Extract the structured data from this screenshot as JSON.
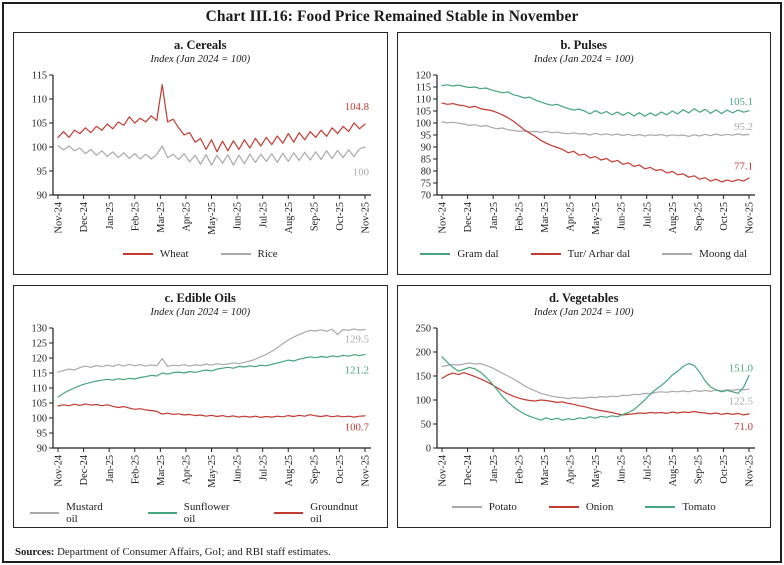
{
  "page": {
    "title": "Chart III.16: Food Price Remained Stable in November",
    "sources_label": "Sources:",
    "sources_text": " Department of Consumer Affairs, GoI; and RBI staff estimates."
  },
  "colors": {
    "red": "#c23b32",
    "green": "#45a57c",
    "gray": "#a9a9a9",
    "axis": "#1f1f1f"
  },
  "x_labels": [
    "Nov-24",
    "Dec-24",
    "Jan-25",
    "Feb-25",
    "Mar-25",
    "Apr-25",
    "May-25",
    "Jun-25",
    "Jul-25",
    "Aug-25",
    "Sep-25",
    "Oct-25",
    "Nov-25"
  ],
  "chart_data": [
    {
      "type": "line",
      "title": "a. Cereals",
      "subtitle": "Index (Jan 2024 = 100)",
      "ylim": [
        90,
        115
      ],
      "yticks": [
        90,
        95,
        100,
        105,
        110,
        115
      ],
      "legend_position": "bottom",
      "grid": false,
      "draw_order": [
        1,
        0
      ],
      "series": [
        {
          "name": "Wheat",
          "color": "red",
          "end_label": "104.8",
          "end_label_at": 108.3,
          "values": [
            102.0,
            103.2,
            102.0,
            103.5,
            102.8,
            104.0,
            103.0,
            104.3,
            103.5,
            104.8,
            103.8,
            105.2,
            104.5,
            106.3,
            105.0,
            106.0,
            105.2,
            106.5,
            105.5,
            113.0,
            105.2,
            105.8,
            104.0,
            102.5,
            103.0,
            101.0,
            101.8,
            99.5,
            101.5,
            99.0,
            101.2,
            99.2,
            101.3,
            99.5,
            101.5,
            99.8,
            101.8,
            100.2,
            102.0,
            100.5,
            102.3,
            100.8,
            102.8,
            101.0,
            103.0,
            101.5,
            103.2,
            102.0,
            103.5,
            102.2,
            104.0,
            102.8,
            104.3,
            103.2,
            105.0,
            103.8,
            104.8
          ]
        },
        {
          "name": "Rice",
          "color": "gray",
          "end_label": "100",
          "end_label_at": 94.7,
          "values": [
            100.3,
            99.4,
            100.2,
            99.2,
            99.8,
            98.6,
            99.5,
            98.3,
            99.2,
            98.0,
            99.0,
            97.8,
            98.8,
            97.6,
            98.6,
            97.5,
            98.5,
            97.5,
            98.4,
            100.2,
            97.8,
            98.5,
            97.4,
            98.6,
            96.9,
            98.3,
            96.4,
            98.4,
            96.2,
            98.3,
            96.6,
            98.4,
            96.2,
            98.3,
            96.5,
            98.5,
            96.8,
            98.5,
            97.0,
            98.6,
            96.8,
            98.7,
            97.0,
            98.8,
            97.2,
            98.9,
            97.3,
            99.0,
            97.4,
            99.2,
            97.6,
            99.3,
            97.8,
            99.4,
            98.0,
            99.6,
            100.0
          ]
        }
      ]
    },
    {
      "type": "line",
      "title": "b. Pulses",
      "subtitle": "Index (Jan 2024 = 100)",
      "ylim": [
        70,
        120
      ],
      "yticks": [
        70,
        75,
        80,
        85,
        90,
        95,
        100,
        105,
        110,
        115,
        120
      ],
      "legend_position": "bottom",
      "grid": false,
      "draw_order": [
        2,
        1,
        0
      ],
      "series": [
        {
          "name": "Gram dal",
          "color": "green",
          "end_label": "105.1",
          "end_label_at": 108.8,
          "values": [
            115.6,
            115.9,
            115.4,
            115.8,
            115.2,
            114.8,
            115.0,
            114.3,
            114.6,
            113.8,
            113.2,
            112.6,
            112.9,
            111.8,
            111.2,
            110.4,
            110.8,
            109.6,
            108.8,
            108.0,
            107.4,
            107.8,
            106.8,
            106.0,
            105.4,
            105.8,
            105.0,
            103.8,
            105.2,
            103.9,
            104.8,
            103.4,
            104.6,
            103.2,
            104.4,
            102.9,
            104.3,
            102.8,
            104.2,
            103.0,
            104.6,
            103.4,
            105.0,
            103.8,
            105.6,
            104.2,
            105.9,
            104.5,
            105.7,
            104.0,
            105.5,
            103.9,
            105.4,
            104.2,
            105.4,
            104.5,
            105.1
          ]
        },
        {
          "name": "Tur/ Arhar dal",
          "color": "red",
          "end_label": "77.1",
          "end_label_at": 81.8,
          "values": [
            108.3,
            107.8,
            108.1,
            107.5,
            107.2,
            106.5,
            106.9,
            106.0,
            105.6,
            105.2,
            104.4,
            103.4,
            102.2,
            100.8,
            99.0,
            97.2,
            95.8,
            94.4,
            92.8,
            91.6,
            90.6,
            89.8,
            89.0,
            87.6,
            88.2,
            86.6,
            87.0,
            85.4,
            86.0,
            84.6,
            85.2,
            83.8,
            84.4,
            82.8,
            83.4,
            81.9,
            82.5,
            80.9,
            81.5,
            80.2,
            80.6,
            79.2,
            79.8,
            78.4,
            78.8,
            77.4,
            78.0,
            76.6,
            77.2,
            75.8,
            76.6,
            75.4,
            76.2,
            75.6,
            76.4,
            75.8,
            77.1
          ]
        },
        {
          "name": "Moong dal",
          "color": "gray",
          "end_label": "95.2",
          "end_label_at": 98.3,
          "values": [
            100.4,
            100.1,
            100.3,
            99.9,
            99.6,
            99.0,
            99.3,
            98.6,
            98.9,
            98.2,
            97.6,
            97.9,
            97.2,
            96.9,
            96.5,
            96.7,
            96.3,
            96.5,
            96.1,
            96.6,
            95.9,
            96.2,
            95.8,
            95.5,
            95.9,
            95.4,
            95.6,
            95.0,
            95.7,
            95.1,
            95.5,
            94.9,
            95.4,
            94.8,
            95.3,
            94.7,
            95.2,
            94.6,
            95.1,
            94.8,
            95.2,
            94.6,
            95.1,
            94.7,
            95.0,
            94.4,
            95.1,
            94.6,
            95.3,
            94.7,
            95.4,
            94.8,
            95.3,
            94.9,
            95.4,
            95.0,
            95.2
          ]
        }
      ]
    },
    {
      "type": "line",
      "title": "c. Edible Oils",
      "subtitle": "Index (Jan 2024 = 100)",
      "ylim": [
        90,
        130
      ],
      "yticks": [
        90,
        95,
        100,
        105,
        110,
        115,
        120,
        125,
        130
      ],
      "legend_position": "bottom",
      "grid": false,
      "draw_order": [
        0,
        1,
        2
      ],
      "series": [
        {
          "name": "Mustard oil",
          "color": "gray",
          "end_label": "129.5",
          "end_label_at": 126.2,
          "values": [
            115.3,
            115.8,
            116.3,
            116.0,
            116.8,
            117.3,
            116.9,
            117.5,
            117.1,
            117.6,
            117.2,
            117.8,
            117.3,
            117.9,
            117.4,
            117.8,
            117.3,
            117.7,
            117.4,
            119.8,
            117.2,
            117.6,
            117.4,
            117.8,
            117.3,
            117.7,
            117.5,
            118.0,
            117.6,
            118.1,
            117.8,
            118.0,
            118.4,
            118.1,
            118.6,
            119.0,
            119.6,
            120.4,
            121.2,
            122.2,
            123.4,
            124.8,
            126.0,
            127.0,
            127.8,
            128.6,
            129.2,
            129.0,
            129.4,
            128.9,
            129.6,
            127.8,
            129.5,
            129.2,
            129.7,
            129.3,
            129.5
          ]
        },
        {
          "name": "Sunflower oil",
          "color": "green",
          "end_label": "121.2",
          "end_label_at": 115.9,
          "values": [
            107.0,
            108.2,
            109.2,
            110.0,
            110.8,
            111.4,
            111.9,
            112.3,
            112.6,
            112.9,
            112.6,
            113.1,
            112.8,
            113.2,
            113.0,
            113.5,
            113.8,
            114.2,
            114.0,
            115.0,
            114.6,
            115.1,
            115.3,
            115.0,
            115.5,
            115.2,
            115.6,
            116.0,
            115.7,
            116.3,
            116.6,
            116.9,
            116.6,
            117.2,
            117.0,
            117.4,
            117.1,
            117.6,
            117.4,
            117.9,
            118.3,
            118.8,
            119.3,
            119.0,
            119.6,
            120.0,
            120.4,
            120.1,
            120.5,
            120.2,
            120.7,
            120.4,
            120.9,
            120.6,
            121.1,
            120.8,
            121.2
          ]
        },
        {
          "name": "Groundnut oil",
          "color": "red",
          "end_label": "100.7",
          "end_label_at": 96.9,
          "values": [
            104.0,
            104.4,
            104.1,
            104.6,
            104.2,
            104.7,
            104.3,
            104.5,
            104.1,
            104.4,
            103.9,
            103.5,
            103.8,
            103.3,
            102.9,
            103.1,
            102.7,
            102.5,
            102.2,
            101.3,
            101.6,
            101.2,
            101.4,
            101.0,
            101.2,
            100.8,
            101.0,
            100.6,
            100.9,
            100.5,
            100.8,
            100.4,
            100.7,
            100.3,
            100.6,
            100.3,
            100.6,
            100.2,
            100.5,
            100.3,
            100.6,
            100.4,
            100.8,
            100.5,
            100.9,
            100.6,
            101.1,
            100.7,
            100.5,
            100.8,
            100.4,
            100.7,
            100.4,
            100.6,
            100.3,
            100.6,
            100.7
          ]
        }
      ]
    },
    {
      "type": "line",
      "title": "d. Vegetables",
      "subtitle": "Index (Jan 2024 = 100)",
      "ylim": [
        0,
        250
      ],
      "yticks": [
        0,
        50,
        100,
        150,
        200,
        250
      ],
      "legend_position": "bottom",
      "grid": false,
      "draw_order": [
        0,
        1,
        2
      ],
      "series": [
        {
          "name": "Potato",
          "color": "gray",
          "end_label": "122.5",
          "end_label_at": 97,
          "values": [
            170,
            172,
            174,
            173,
            175,
            177,
            175,
            176,
            172,
            168,
            162,
            156,
            150,
            144,
            137,
            130,
            124,
            119,
            114,
            111,
            108,
            106,
            105,
            103,
            105,
            104,
            104,
            106,
            105,
            107,
            106,
            108,
            107,
            110,
            109,
            112,
            111,
            114,
            113,
            116,
            117,
            116,
            118,
            117,
            119,
            117,
            120,
            118,
            120,
            118,
            121,
            119,
            121,
            120,
            122,
            121,
            122.5
          ]
        },
        {
          "name": "Onion",
          "color": "red",
          "end_label": "71.0",
          "end_label_at": 44,
          "values": [
            145,
            152,
            156,
            153,
            157,
            153,
            149,
            144,
            139,
            133,
            126,
            119,
            113,
            108,
            104,
            101,
            99,
            98,
            100,
            99,
            97,
            95,
            96,
            93,
            91,
            88,
            86,
            83,
            80,
            78,
            76,
            74,
            71,
            69,
            70,
            71,
            73,
            72,
            74,
            73,
            74,
            72,
            75,
            73,
            75,
            74,
            76,
            74,
            73,
            71,
            73,
            70,
            72,
            70,
            72,
            69,
            71
          ]
        },
        {
          "name": "Tomato",
          "color": "green",
          "end_label": "151.0",
          "end_label_at": 166,
          "values": [
            190,
            178,
            168,
            160,
            164,
            168,
            165,
            158,
            148,
            136,
            122,
            108,
            96,
            86,
            78,
            71,
            66,
            62,
            58,
            63,
            59,
            62,
            58,
            61,
            59,
            63,
            61,
            65,
            62,
            66,
            64,
            67,
            65,
            70,
            74,
            80,
            90,
            100,
            112,
            122,
            130,
            140,
            152,
            160,
            170,
            176,
            172,
            158,
            140,
            127,
            121,
            117,
            120,
            117,
            114,
            126,
            151
          ]
        }
      ]
    }
  ]
}
